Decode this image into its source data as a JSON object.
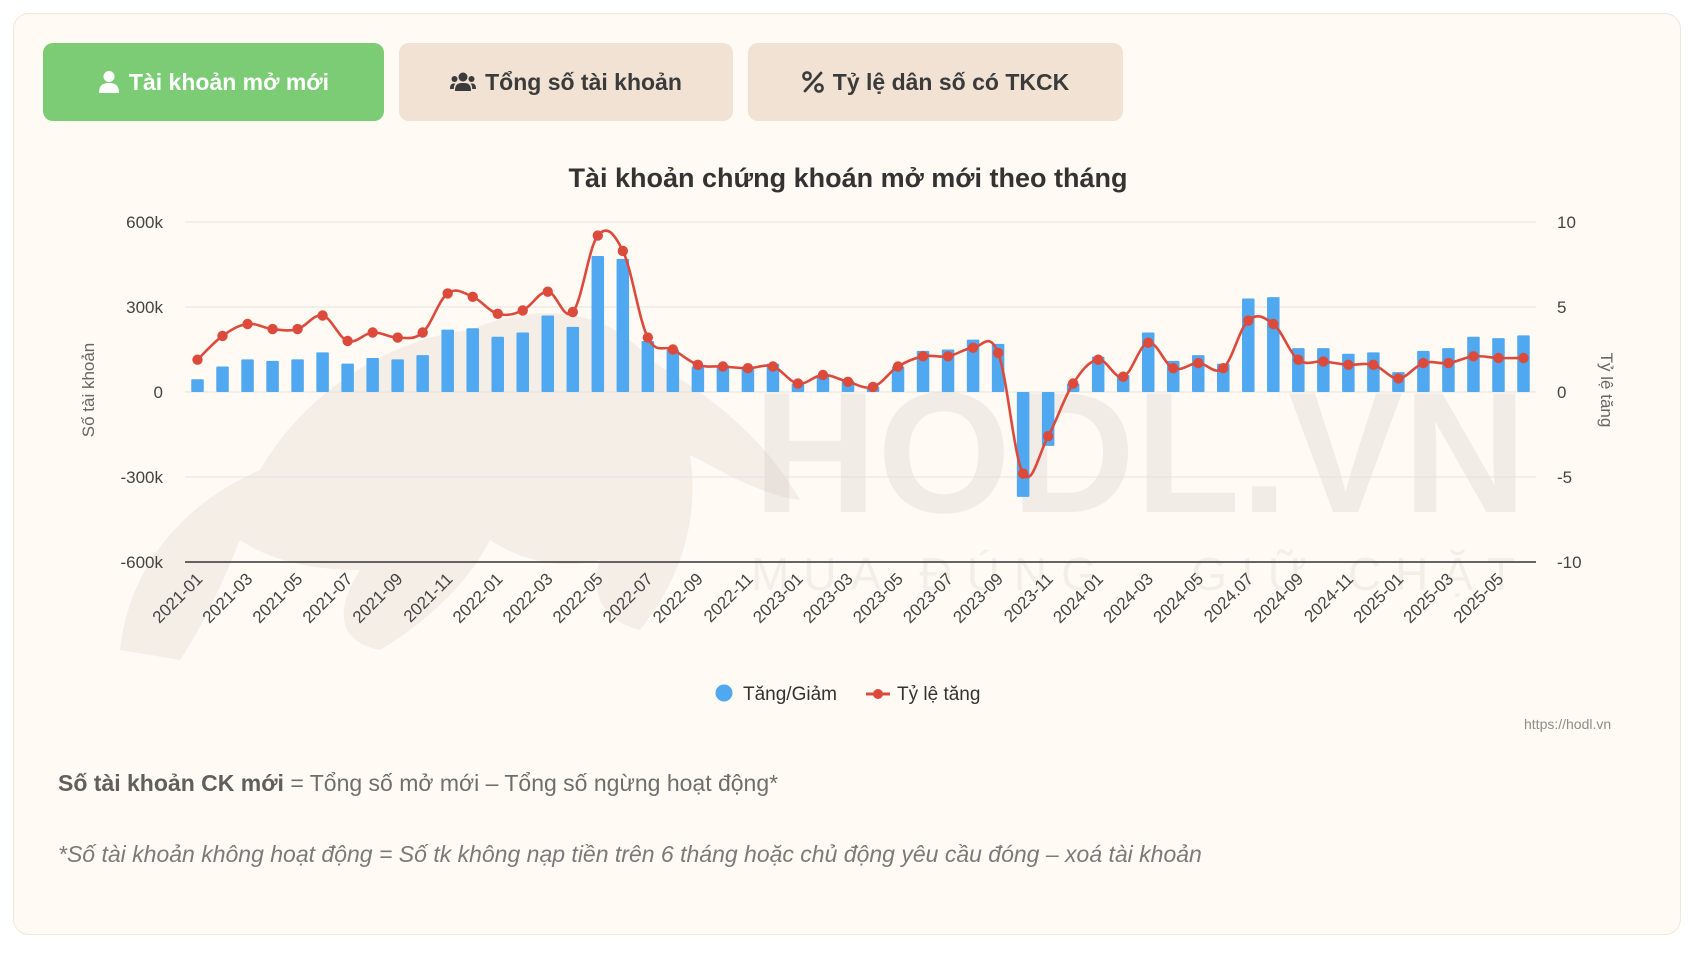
{
  "tabs": [
    {
      "label": "Tài khoản mở mới",
      "icon": "user-icon",
      "active": true
    },
    {
      "label": "Tổng số tài khoản",
      "icon": "users-icon",
      "active": false
    },
    {
      "label": "Tỷ lệ dân số có TKCK",
      "icon": "percent-icon",
      "active": false
    }
  ],
  "colors": {
    "bar": "#4fa8f0",
    "line": "#dc4a3c",
    "active_tab": "#7bcc75",
    "tab": "#f1e2d3"
  },
  "chart_data": {
    "type": "bar",
    "title": "Tài khoản chứng khoán mở mới theo tháng",
    "ylabel": "Số tài khoản",
    "y2label": "Tỷ lệ tăng",
    "ylim": [
      -600000,
      600000
    ],
    "y2lim": [
      -10,
      10
    ],
    "yticks": [
      "600k",
      "300k",
      "0",
      "-300k",
      "-600k"
    ],
    "y2ticks": [
      "10",
      "5",
      "0",
      "-5",
      "-10"
    ],
    "x_tick_labels": [
      "2021-01",
      "2021-03",
      "2021-05",
      "2021-07",
      "2021-09",
      "2021-11",
      "2022-01",
      "2022-03",
      "2022-05",
      "2022-07",
      "2022-09",
      "2022-11",
      "2023-01",
      "2023-03",
      "2023-05",
      "2023-07",
      "2023-09",
      "2023-11",
      "2024-01",
      "2024-03",
      "2024-05",
      "2024.07",
      "2024-09",
      "2024-11",
      "2025-01",
      "2025-03",
      "2025-05"
    ],
    "categories": [
      "2021-01",
      "2021-02",
      "2021-03",
      "2021-04",
      "2021-05",
      "2021-06",
      "2021-07",
      "2021-08",
      "2021-09",
      "2021-10",
      "2021-11",
      "2021-12",
      "2022-01",
      "2022-02",
      "2022-03",
      "2022-04",
      "2022-05",
      "2022-06",
      "2022-07",
      "2022-08",
      "2022-09",
      "2022-10",
      "2022-11",
      "2022-12",
      "2023-01",
      "2023-02",
      "2023-03",
      "2023-04",
      "2023-05",
      "2023-06",
      "2023-07",
      "2023-08",
      "2023-09",
      "2023-10",
      "2023-11",
      "2023-12",
      "2024-01",
      "2024-02",
      "2024-03",
      "2024-04",
      "2024-05",
      "2024-06",
      "2024-07",
      "2024-08",
      "2024-09",
      "2024-10",
      "2024-11",
      "2024-12",
      "2025-01",
      "2025-02",
      "2025-03",
      "2025-04",
      "2025-05",
      "2025-06"
    ],
    "series": [
      {
        "name": "Tăng/Giảm",
        "type": "bar",
        "values": [
          45000,
          90000,
          115000,
          110000,
          115000,
          140000,
          100000,
          120000,
          115000,
          130000,
          220000,
          225000,
          195000,
          210000,
          270000,
          230000,
          480000,
          470000,
          180000,
          150000,
          90000,
          95000,
          90000,
          100000,
          30000,
          60000,
          40000,
          20000,
          90000,
          145000,
          150000,
          185000,
          170000,
          -370000,
          -190000,
          30000,
          125000,
          60000,
          210000,
          110000,
          130000,
          100000,
          330000,
          335000,
          155000,
          155000,
          135000,
          140000,
          70000,
          145000,
          155000,
          195000,
          190000,
          200000
        ]
      },
      {
        "name": "Tỷ lệ tăng",
        "type": "line",
        "axis": "right",
        "values": [
          1.9,
          3.3,
          4.0,
          3.7,
          3.7,
          4.5,
          3.0,
          3.5,
          3.2,
          3.5,
          5.8,
          5.6,
          4.6,
          4.8,
          5.9,
          4.7,
          9.2,
          8.3,
          3.2,
          2.5,
          1.6,
          1.5,
          1.4,
          1.5,
          0.5,
          1.0,
          0.6,
          0.3,
          1.5,
          2.1,
          2.1,
          2.6,
          2.3,
          -4.8,
          -2.6,
          0.5,
          1.9,
          0.9,
          2.9,
          1.4,
          1.7,
          1.4,
          4.2,
          4.0,
          1.9,
          1.8,
          1.6,
          1.6,
          0.8,
          1.7,
          1.7,
          2.1,
          2.0,
          2.0
        ]
      }
    ],
    "legend": "bottom",
    "grid": true
  },
  "watermark": {
    "brand": "HODL.VN",
    "slogan": "MUA ĐÚNG . GIỮ CHẶT"
  },
  "source": "https://hodl.vn",
  "notes": {
    "formula_bold": "Số tài khoản CK mới",
    "formula_rest": " = Tổng số mở mới – Tổng số ngừng hoạt động*",
    "footnote": "*Số tài khoản không hoạt động = Số tk không nạp tiền trên 6 tháng hoặc chủ động yêu cầu đóng – xoá tài khoản"
  }
}
